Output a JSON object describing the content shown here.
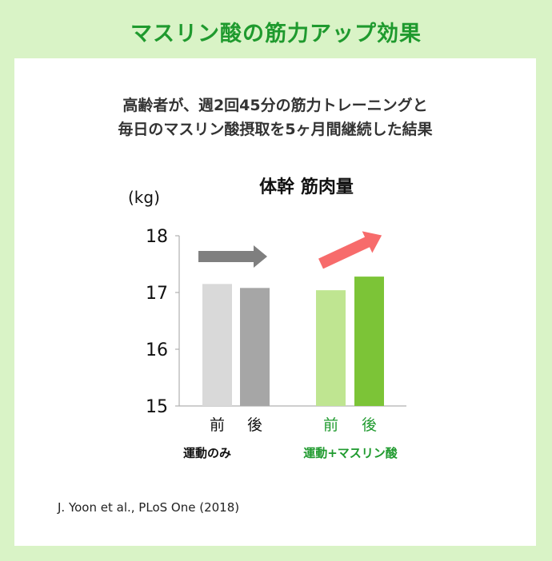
{
  "header": {
    "title": "マスリン酸の筋力アップ効果"
  },
  "description": {
    "line1": "高齢者が、週2回45分の筋力トレーニングと",
    "line2": "毎日のマスリン酸摂取を5ヶ月間継続した結果"
  },
  "chart_data": {
    "type": "bar",
    "title": "体幹 筋肉量",
    "ylabel": "(kg)",
    "ylim": [
      15,
      18
    ],
    "yticks": [
      15,
      16,
      17,
      18
    ],
    "grid": false,
    "groups": [
      {
        "label": "運動のみ",
        "bars": [
          {
            "label": "前",
            "value": 17.15,
            "color": "#d9d9d9"
          },
          {
            "label": "後",
            "value": 17.08,
            "color": "#a6a6a6"
          }
        ],
        "arrow_color": "#7f7f7f",
        "label_color": "#111111"
      },
      {
        "label": "運動+マスリン酸",
        "bars": [
          {
            "label": "前",
            "value": 17.04,
            "color": "#bfe591"
          },
          {
            "label": "後",
            "value": 17.28,
            "color": "#7cc437"
          }
        ],
        "arrow_color": "#f76b6b",
        "label_color": "#1f9a2e"
      }
    ]
  },
  "citation": "J. Yoon et al., PLoS One (2018)"
}
